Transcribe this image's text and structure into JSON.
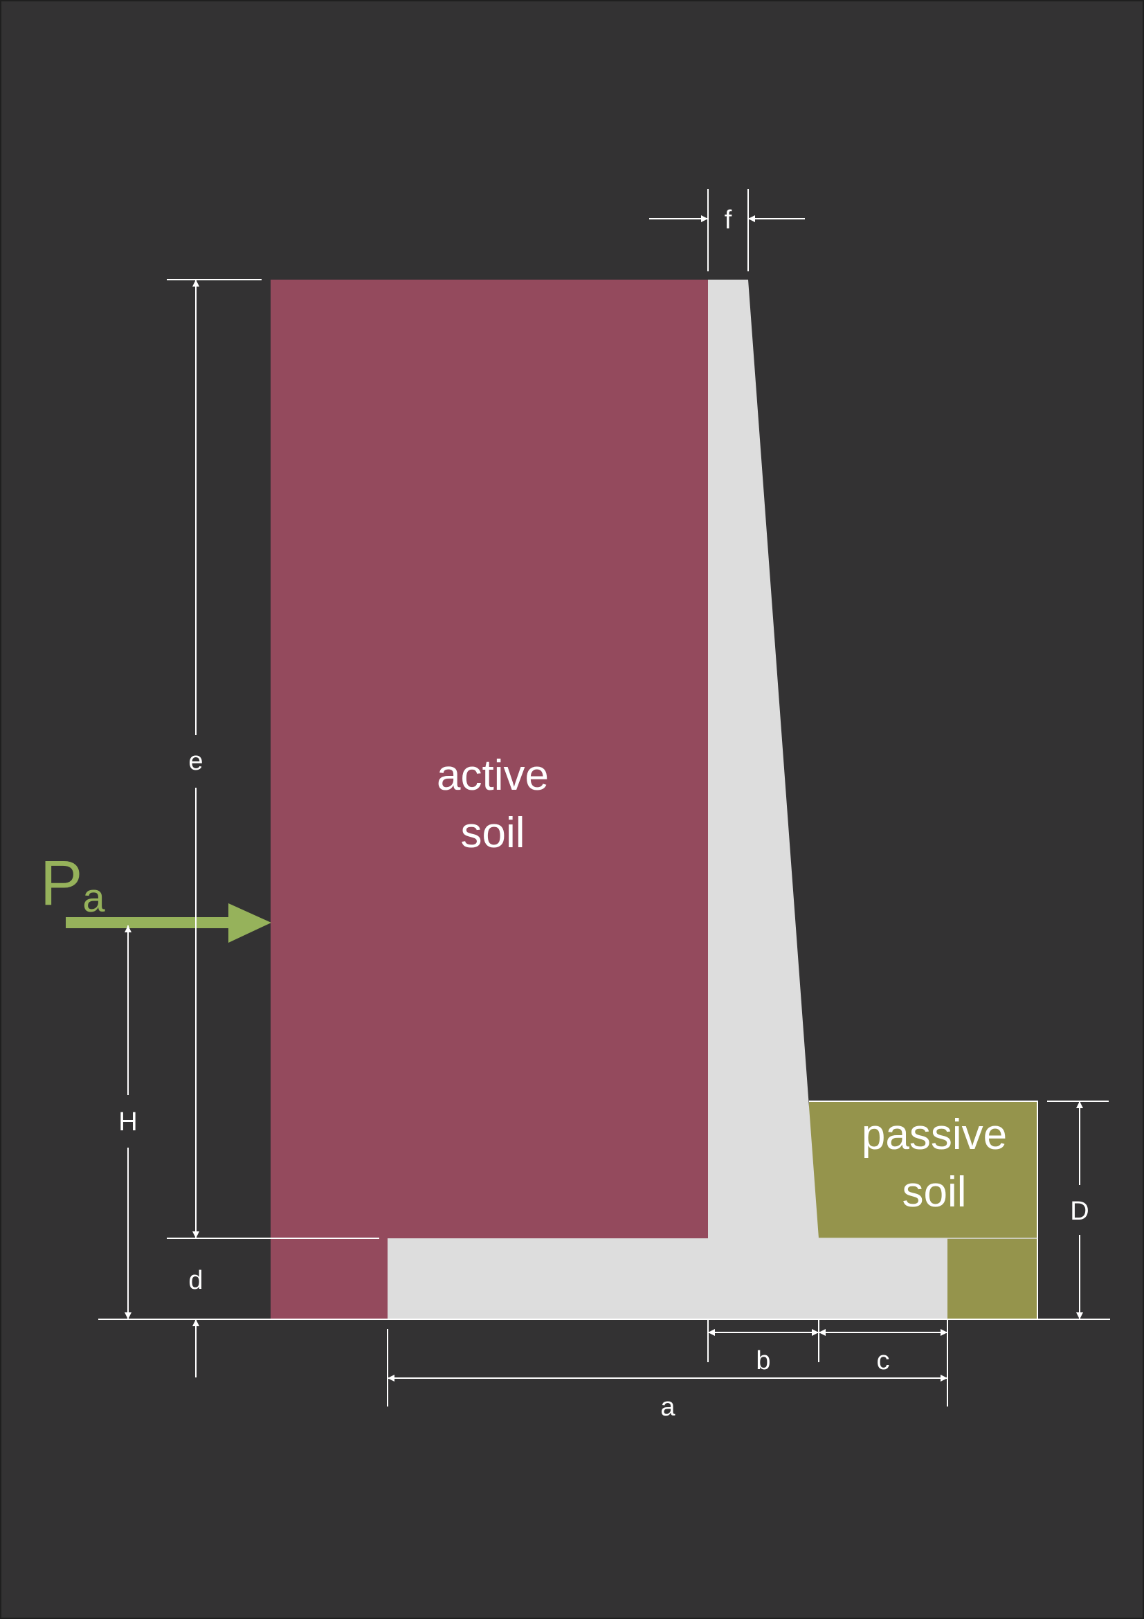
{
  "colors": {
    "background": "#333233",
    "active_soil": "#944a5d",
    "passive_soil": "#95944c",
    "concrete": "#dddddd",
    "dimension": "#ffffff",
    "force": "#96b25b"
  },
  "labels": {
    "active_soil_line1": "active",
    "active_soil_line2": "soil",
    "passive_soil_line1": "passive",
    "passive_soil_line2": "soil",
    "force_P": "P",
    "force_subscript": "a",
    "dim_a": "a",
    "dim_b": "b",
    "dim_c": "c",
    "dim_d": "d",
    "dim_e": "e",
    "dim_f": "f",
    "dim_H": "H",
    "dim_D": "D"
  }
}
